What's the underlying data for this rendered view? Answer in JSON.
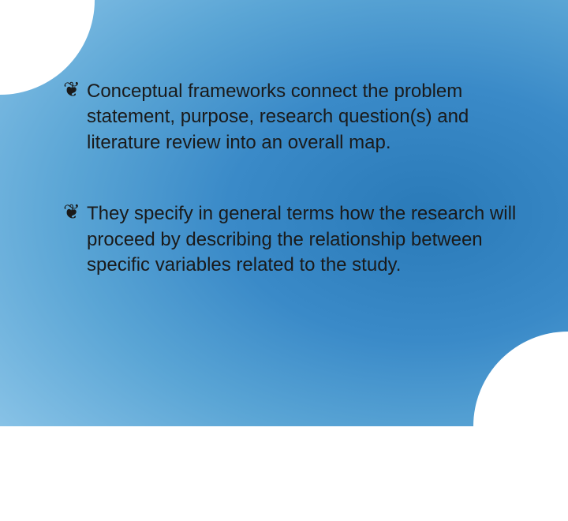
{
  "slide": {
    "background": {
      "gradient_type": "radial",
      "center": "75% 50%",
      "stops": [
        "#2a7ab8",
        "#3a8ac8",
        "#5aa5d5",
        "#8cc5e8",
        "#c5e2f2",
        "#eaf4fb"
      ],
      "corner_radius_tl": 110,
      "corner_radius_br": 110
    },
    "bullets": [
      {
        "marker": "❦",
        "text": "Conceptual frameworks connect the problem statement, purpose, research question(s) and literature review into an overall map."
      },
      {
        "marker": "❦",
        "text": "They specify in general terms how the research will proceed by describing the relationship between specific variables related to the study."
      }
    ],
    "typography": {
      "font_family": "Arial",
      "font_size_pt": 24,
      "text_color": "#1a1a1a",
      "marker_color": "#1a1a1a"
    }
  }
}
